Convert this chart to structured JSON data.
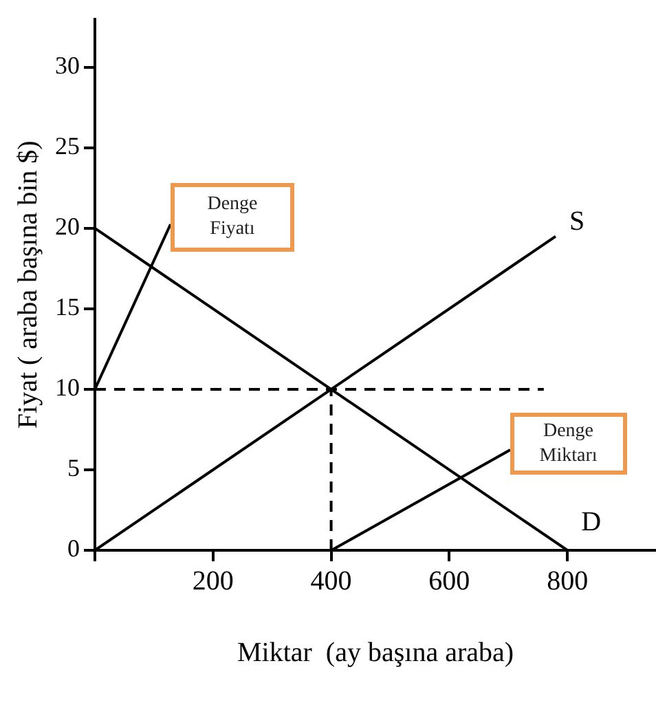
{
  "chart_data": {
    "type": "line",
    "xlabel": "Miktar  (ay başına araba)",
    "ylabel": "Fiyat ( araba başına bin $)",
    "xlim": [
      0,
      950
    ],
    "xticks": [
      {
        "value": 0,
        "label": null
      },
      200,
      400,
      600,
      800
    ],
    "ylim": [
      0,
      33
    ],
    "yticks": [
      0,
      5,
      10,
      15,
      20,
      25,
      30
    ],
    "grid": false,
    "legend": false,
    "marker": "none",
    "series": [
      {
        "name": "S",
        "color": "#000000",
        "x": [
          0,
          780
        ],
        "values": [
          0,
          19.5
        ]
      },
      {
        "name": "D",
        "color": "#000000",
        "x": [
          0,
          800
        ],
        "values": [
          20,
          0
        ]
      },
      {
        "color": "#000000",
        "x": [
          0,
          760
        ],
        "values": [
          10,
          10
        ],
        "line_style": "dashed"
      },
      {
        "color": "#000000",
        "x": [
          400,
          400
        ],
        "values": [
          0,
          10
        ],
        "line_style": "dashed"
      }
    ],
    "annotations": [
      "Denge\nFiyatı",
      "Denge\nMiktarı"
    ]
  }
}
